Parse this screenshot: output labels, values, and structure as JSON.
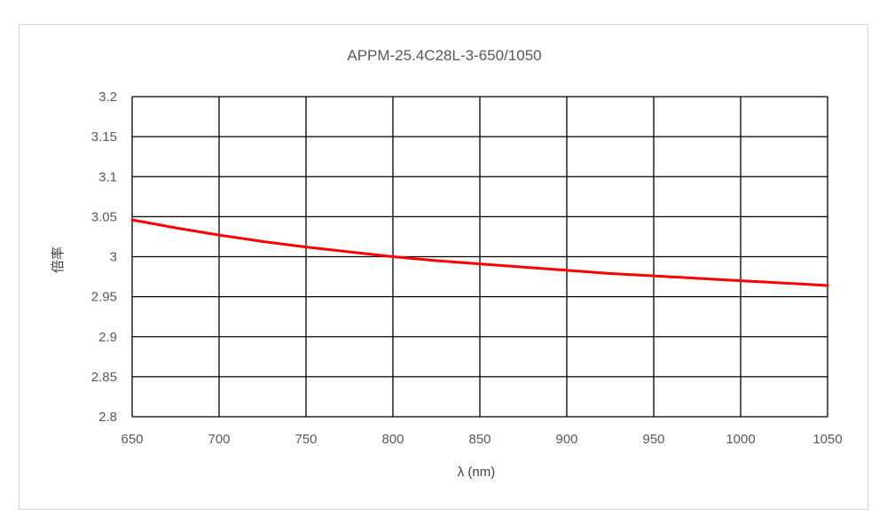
{
  "chart_data": {
    "type": "line",
    "title": "APPM-25.4C28L-3-650/1050",
    "xlabel": "λ (nm)",
    "ylabel": "倍率",
    "xlim": [
      650,
      1050
    ],
    "ylim": [
      2.8,
      3.2
    ],
    "x_ticks": [
      "650",
      "700",
      "750",
      "800",
      "850",
      "900",
      "950",
      "1000",
      "1050"
    ],
    "y_ticks": [
      "2.8",
      "2.85",
      "2.9",
      "2.95",
      "3",
      "3.05",
      "3.1",
      "3.15",
      "3.2"
    ],
    "grid": true,
    "legend": "none",
    "series": [
      {
        "color": "#ff0000",
        "x": [
          650,
          675,
          700,
          725,
          750,
          775,
          800,
          825,
          850,
          875,
          900,
          925,
          950,
          975,
          1000,
          1025,
          1050
        ],
        "y": [
          3.046,
          3.036,
          3.027,
          3.019,
          3.012,
          3.006,
          3.0,
          2.995,
          2.991,
          2.987,
          2.983,
          2.979,
          2.976,
          2.973,
          2.97,
          2.967,
          2.964
        ]
      }
    ]
  }
}
